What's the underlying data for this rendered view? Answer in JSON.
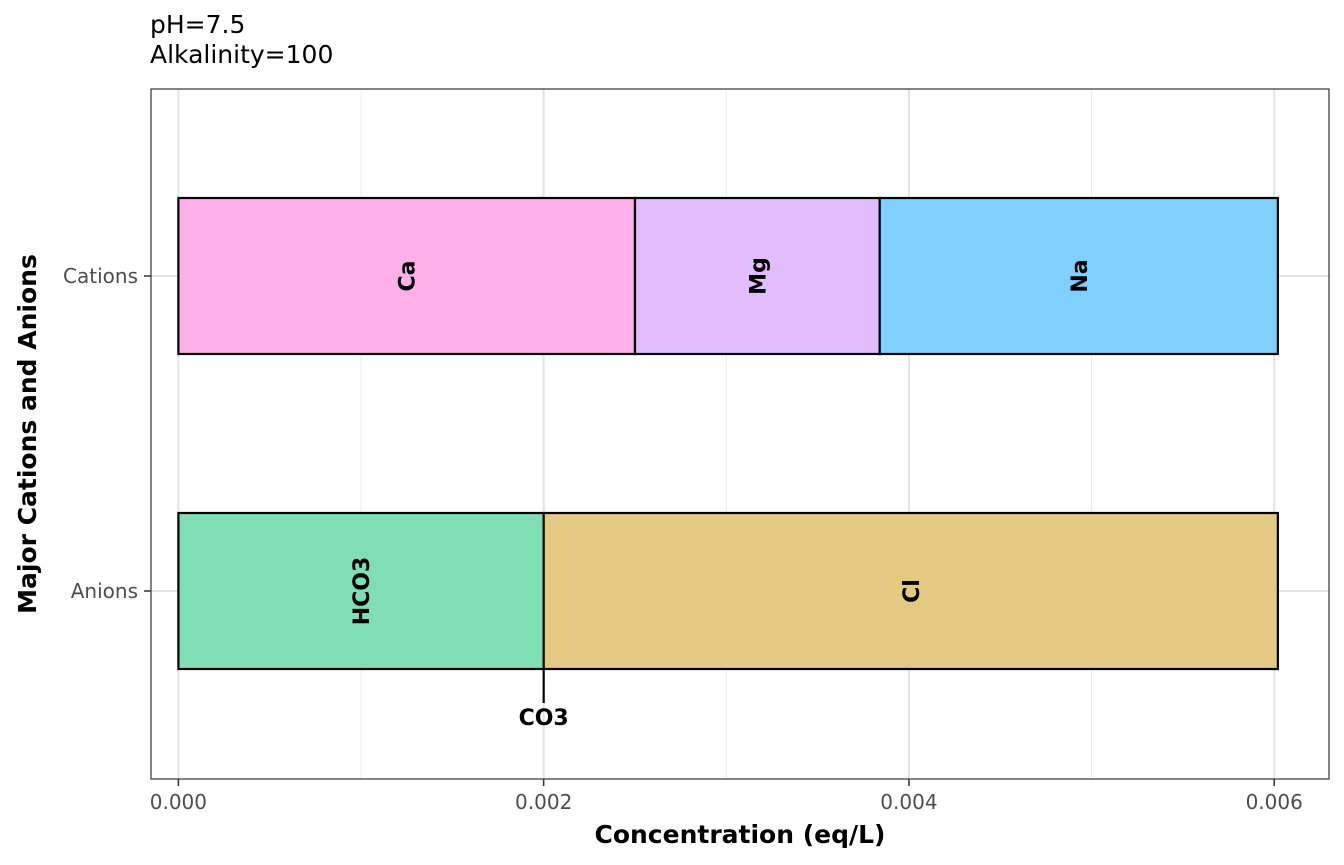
{
  "chart_data": {
    "type": "bar",
    "orientation": "horizontal",
    "stacked": true,
    "title_lines": [
      "pH=7.5",
      "Alkalinity=100"
    ],
    "xlabel": "Concentration (eq/L)",
    "ylabel": "Major Cations and Anions",
    "xlim": [
      -0.00015,
      0.0063
    ],
    "x_ticks": [
      0.0,
      0.002,
      0.004,
      0.006
    ],
    "x_tick_labels": [
      "0.000",
      "0.002",
      "0.004",
      "0.006"
    ],
    "categories": [
      "Cations",
      "Anions"
    ],
    "grid": true,
    "bars": [
      {
        "category": "Cations",
        "segments": [
          {
            "name": "Ca",
            "value": 0.0025,
            "color": "#FFB0E8"
          },
          {
            "name": "Mg",
            "value": 0.00134,
            "color": "#E2BDFE"
          },
          {
            "name": "Na",
            "value": 0.00218,
            "color": "#80D0FE"
          }
        ]
      },
      {
        "category": "Anions",
        "segments": [
          {
            "name": "HCO3",
            "value": 0.002,
            "color": "#80DEB5"
          },
          {
            "name": "CO3",
            "value": 0.0,
            "color": "#E2C5E0",
            "label_below": true
          },
          {
            "name": "Cl",
            "value": 0.00402,
            "color": "#E3C982"
          }
        ]
      }
    ]
  }
}
